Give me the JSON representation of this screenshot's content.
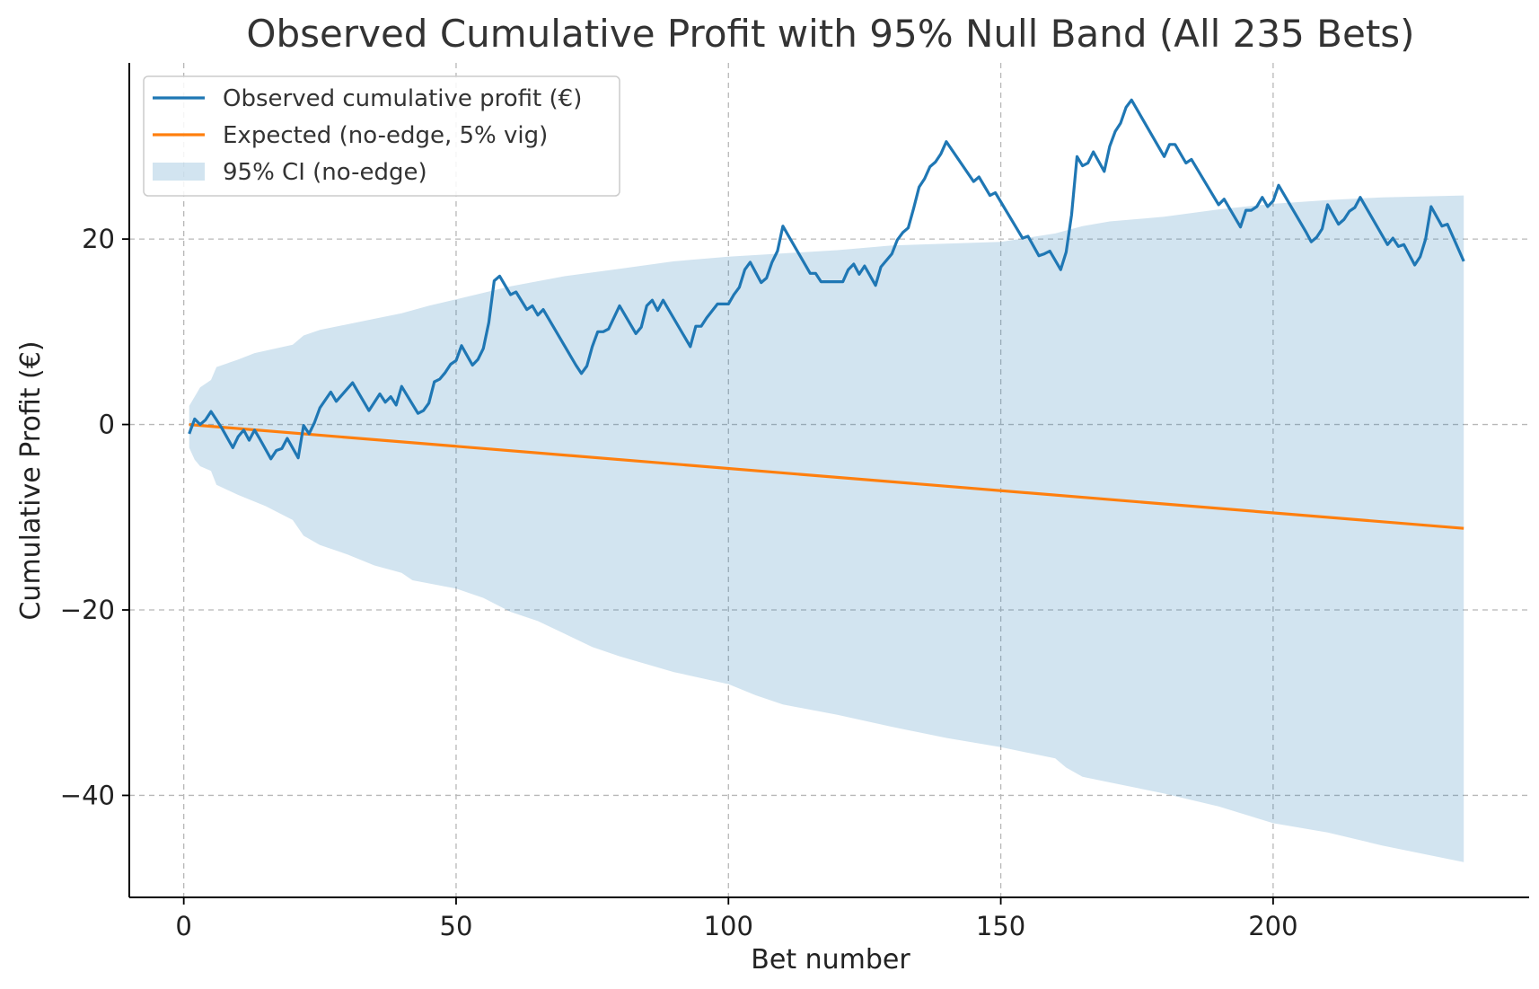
{
  "chart_data": {
    "type": "line",
    "title": "Observed Cumulative Profit with 95% Null Band (All 235 Bets)",
    "xlabel": "Bet number",
    "ylabel": "Cumulative Profit (€)",
    "xlim": [
      -10,
      247
    ],
    "ylim": [
      -51,
      39
    ],
    "xticks": [
      0,
      50,
      100,
      150,
      200
    ],
    "yticks": [
      -40,
      -20,
      0,
      20
    ],
    "xtick_labels": [
      "0",
      "50",
      "100",
      "150",
      "200"
    ],
    "ytick_labels": [
      "−40",
      "−20",
      "0",
      "20"
    ],
    "grid": true,
    "legend_position": "top-left",
    "colors": {
      "observed": "#1f77b4",
      "expected": "#ff7f0e",
      "band": "#1f77b4"
    },
    "series": [
      {
        "name": "Observed cumulative profit (€)",
        "points": [
          [
            1,
            -1
          ],
          [
            2,
            0.6
          ],
          [
            3,
            0
          ],
          [
            4,
            0.5
          ],
          [
            5,
            1.4
          ],
          [
            6,
            0.5
          ],
          [
            7,
            -0.4
          ],
          [
            9,
            -2.5
          ],
          [
            10,
            -1.3
          ],
          [
            11,
            -0.6
          ],
          [
            12,
            -1.7
          ],
          [
            13,
            -0.6
          ],
          [
            14,
            -1.6
          ],
          [
            16,
            -3.7
          ],
          [
            17,
            -2.8
          ],
          [
            18,
            -2.6
          ],
          [
            19,
            -1.5
          ],
          [
            21,
            -3.6
          ],
          [
            22,
            -0.1
          ],
          [
            23,
            -1
          ],
          [
            24,
            0.2
          ],
          [
            25,
            1.8
          ],
          [
            27,
            3.5
          ],
          [
            28,
            2.5
          ],
          [
            31,
            4.5
          ],
          [
            34,
            1.5
          ],
          [
            36,
            3.3
          ],
          [
            37,
            2.4
          ],
          [
            38,
            3
          ],
          [
            39,
            2.1
          ],
          [
            40,
            4.1
          ],
          [
            43,
            1.2
          ],
          [
            44,
            1.5
          ],
          [
            45,
            2.3
          ],
          [
            46,
            4.6
          ],
          [
            47,
            4.9
          ],
          [
            48,
            5.6
          ],
          [
            49,
            6.5
          ],
          [
            50,
            6.9
          ],
          [
            51,
            8.5
          ],
          [
            53,
            6.4
          ],
          [
            54,
            7
          ],
          [
            55,
            8.2
          ],
          [
            56,
            11
          ],
          [
            57,
            15.5
          ],
          [
            58,
            16
          ],
          [
            60,
            14
          ],
          [
            61,
            14.3
          ],
          [
            63,
            12.4
          ],
          [
            64,
            12.8
          ],
          [
            65,
            11.8
          ],
          [
            66,
            12.4
          ],
          [
            72,
            6.4
          ],
          [
            73,
            5.5
          ],
          [
            74,
            6.3
          ],
          [
            75,
            8.4
          ],
          [
            76,
            10
          ],
          [
            77,
            10
          ],
          [
            78,
            10.3
          ],
          [
            80,
            12.8
          ],
          [
            83,
            9.8
          ],
          [
            84,
            10.5
          ],
          [
            85,
            12.8
          ],
          [
            86,
            13.4
          ],
          [
            87,
            12.3
          ],
          [
            88,
            13.4
          ],
          [
            93,
            8.4
          ],
          [
            94,
            10.6
          ],
          [
            95,
            10.6
          ],
          [
            96,
            11.5
          ],
          [
            98,
            13
          ],
          [
            100,
            13
          ],
          [
            101,
            14
          ],
          [
            102,
            14.8
          ],
          [
            103,
            16.7
          ],
          [
            104,
            17.5
          ],
          [
            105,
            16.4
          ],
          [
            106,
            15.3
          ],
          [
            107,
            15.8
          ],
          [
            108,
            17.5
          ],
          [
            109,
            18.7
          ],
          [
            110,
            21.4
          ],
          [
            115,
            16.3
          ],
          [
            116,
            16.3
          ],
          [
            117,
            15.4
          ],
          [
            121,
            15.4
          ],
          [
            122,
            16.7
          ],
          [
            123,
            17.3
          ],
          [
            124,
            16.2
          ],
          [
            125,
            17.1
          ],
          [
            127,
            15
          ],
          [
            128,
            17
          ],
          [
            130,
            18.4
          ],
          [
            131,
            19.9
          ],
          [
            132,
            20.7
          ],
          [
            133,
            21.2
          ],
          [
            134,
            23.3
          ],
          [
            135,
            25.6
          ],
          [
            136,
            26.5
          ],
          [
            137,
            27.8
          ],
          [
            138,
            28.3
          ],
          [
            139,
            29.2
          ],
          [
            140,
            30.5
          ],
          [
            145,
            26.2
          ],
          [
            146,
            26.7
          ],
          [
            148,
            24.7
          ],
          [
            149,
            25
          ],
          [
            154,
            20.1
          ],
          [
            155,
            20.3
          ],
          [
            157,
            18.2
          ],
          [
            158,
            18.4
          ],
          [
            159,
            18.7
          ],
          [
            161,
            16.7
          ],
          [
            162,
            18.6
          ],
          [
            163,
            22.6
          ],
          [
            164,
            28.9
          ],
          [
            165,
            27.9
          ],
          [
            166,
            28.2
          ],
          [
            167,
            29.4
          ],
          [
            169,
            27.3
          ],
          [
            170,
            30
          ],
          [
            171,
            31.6
          ],
          [
            172,
            32.5
          ],
          [
            173,
            34.2
          ],
          [
            174,
            35
          ],
          [
            180,
            28.9
          ],
          [
            181,
            30.2
          ],
          [
            182,
            30.2
          ],
          [
            184,
            28.2
          ],
          [
            185,
            28.6
          ],
          [
            190,
            23.7
          ],
          [
            191,
            24.3
          ],
          [
            194,
            21.3
          ],
          [
            195,
            23.1
          ],
          [
            196,
            23.1
          ],
          [
            197,
            23.5
          ],
          [
            198,
            24.5
          ],
          [
            199,
            23.5
          ],
          [
            200,
            24.1
          ],
          [
            201,
            25.8
          ],
          [
            206,
            20.8
          ],
          [
            207,
            19.7
          ],
          [
            208,
            20.2
          ],
          [
            209,
            21.1
          ],
          [
            210,
            23.7
          ],
          [
            212,
            21.6
          ],
          [
            213,
            22.1
          ],
          [
            214,
            23
          ],
          [
            215,
            23.4
          ],
          [
            216,
            24.5
          ],
          [
            221,
            19.4
          ],
          [
            222,
            20.1
          ],
          [
            223,
            19.2
          ],
          [
            224,
            19.4
          ],
          [
            226,
            17.2
          ],
          [
            227,
            18.1
          ],
          [
            228,
            20
          ],
          [
            229,
            23.5
          ],
          [
            231,
            21.4
          ],
          [
            232,
            21.6
          ],
          [
            235,
            17.6
          ]
        ]
      },
      {
        "name": "Expected (no-edge, 5% vig)",
        "points": [
          [
            1,
            0
          ],
          [
            235,
            -11.2
          ]
        ]
      },
      {
        "name": "95% CI (no-edge)",
        "upper": [
          [
            1,
            2
          ],
          [
            2,
            3
          ],
          [
            3,
            4
          ],
          [
            5,
            4.8
          ],
          [
            6,
            6.2
          ],
          [
            10,
            7
          ],
          [
            13,
            7.7
          ],
          [
            20,
            8.6
          ],
          [
            22,
            9.6
          ],
          [
            25,
            10.2
          ],
          [
            35,
            11.4
          ],
          [
            40,
            12
          ],
          [
            45,
            12.8
          ],
          [
            55,
            14.2
          ],
          [
            60,
            14.9
          ],
          [
            70,
            16
          ],
          [
            80,
            16.8
          ],
          [
            90,
            17.6
          ],
          [
            100,
            18.1
          ],
          [
            120,
            18.8
          ],
          [
            130,
            19.3
          ],
          [
            150,
            19.7
          ],
          [
            160,
            20.6
          ],
          [
            165,
            21.4
          ],
          [
            170,
            21.9
          ],
          [
            180,
            22.4
          ],
          [
            190,
            23.2
          ],
          [
            200,
            23.8
          ],
          [
            210,
            24.2
          ],
          [
            220,
            24.5
          ],
          [
            235,
            24.7
          ]
        ],
        "lower": [
          [
            1,
            -2.5
          ],
          [
            2,
            -3.8
          ],
          [
            3,
            -4.5
          ],
          [
            5,
            -5
          ],
          [
            6,
            -6.5
          ],
          [
            10,
            -7.6
          ],
          [
            15,
            -8.8
          ],
          [
            20,
            -10.3
          ],
          [
            22,
            -12
          ],
          [
            25,
            -13
          ],
          [
            30,
            -14
          ],
          [
            35,
            -15.2
          ],
          [
            40,
            -16
          ],
          [
            42,
            -16.8
          ],
          [
            50,
            -17.7
          ],
          [
            55,
            -18.7
          ],
          [
            60,
            -20.2
          ],
          [
            65,
            -21.2
          ],
          [
            70,
            -22.6
          ],
          [
            75,
            -24
          ],
          [
            80,
            -25
          ],
          [
            90,
            -26.7
          ],
          [
            100,
            -28
          ],
          [
            105,
            -29.2
          ],
          [
            110,
            -30.2
          ],
          [
            120,
            -31.3
          ],
          [
            130,
            -32.6
          ],
          [
            140,
            -33.8
          ],
          [
            150,
            -34.8
          ],
          [
            160,
            -36
          ],
          [
            162,
            -37
          ],
          [
            165,
            -38
          ],
          [
            170,
            -38.6
          ],
          [
            180,
            -39.8
          ],
          [
            190,
            -41.2
          ],
          [
            200,
            -43
          ],
          [
            210,
            -44
          ],
          [
            220,
            -45.4
          ],
          [
            230,
            -46.6
          ],
          [
            235,
            -47.2
          ]
        ]
      }
    ]
  }
}
